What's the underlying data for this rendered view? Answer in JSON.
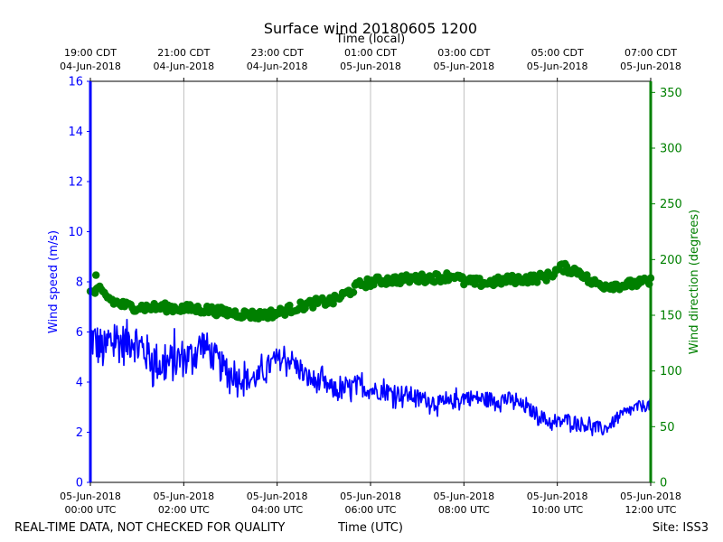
{
  "chart_data": {
    "type": "line",
    "title": "Surface wind 20180605 1200",
    "top_axis_label": "Time (local)",
    "xlabel": "Time (UTC)",
    "ylabel_left": "Wind speed (m/s)",
    "ylabel_right": "Wind direction (degrees)",
    "footer_left": "REAL-TIME DATA, NOT CHECKED FOR QUALITY",
    "footer_right": "Site: ISS3",
    "x_range_hours_utc": [
      0,
      12
    ],
    "ylim_left": [
      0,
      16
    ],
    "ylim_right": [
      0,
      360
    ],
    "left_ticks": [
      "0",
      "2",
      "4",
      "6",
      "8",
      "10",
      "12",
      "14",
      "16"
    ],
    "right_ticks": [
      "0",
      "50",
      "100",
      "150",
      "200",
      "250",
      "300",
      "350"
    ],
    "bottom_ticks": [
      {
        "hour": 0,
        "line1": "05-Jun-2018",
        "line2": "00:00 UTC"
      },
      {
        "hour": 2,
        "line1": "05-Jun-2018",
        "line2": "02:00 UTC"
      },
      {
        "hour": 4,
        "line1": "05-Jun-2018",
        "line2": "04:00 UTC"
      },
      {
        "hour": 6,
        "line1": "05-Jun-2018",
        "line2": "06:00 UTC"
      },
      {
        "hour": 8,
        "line1": "05-Jun-2018",
        "line2": "08:00 UTC"
      },
      {
        "hour": 10,
        "line1": "05-Jun-2018",
        "line2": "10:00 UTC"
      },
      {
        "hour": 12,
        "line1": "05-Jun-2018",
        "line2": "12:00 UTC"
      }
    ],
    "top_ticks": [
      {
        "hour": 0,
        "line1": "19:00 CDT",
        "line2": "04-Jun-2018"
      },
      {
        "hour": 2,
        "line1": "21:00 CDT",
        "line2": "04-Jun-2018"
      },
      {
        "hour": 4,
        "line1": "23:00 CDT",
        "line2": "04-Jun-2018"
      },
      {
        "hour": 6,
        "line1": "01:00 CDT",
        "line2": "05-Jun-2018"
      },
      {
        "hour": 8,
        "line1": "03:00 CDT",
        "line2": "05-Jun-2018"
      },
      {
        "hour": 10,
        "line1": "05:00 CDT",
        "line2": "05-Jun-2018"
      },
      {
        "hour": 12,
        "line1": "07:00 CDT",
        "line2": "05-Jun-2018"
      }
    ],
    "series": [
      {
        "name": "Wind speed",
        "axis": "left",
        "color": "#0000ff",
        "style": "line",
        "anchors": [
          [
            0,
            5.8
          ],
          [
            0.3,
            5.2
          ],
          [
            0.5,
            5.8
          ],
          [
            0.7,
            5.5
          ],
          [
            0.9,
            5.8
          ],
          [
            1.1,
            5.3
          ],
          [
            1.5,
            4.7
          ],
          [
            1.8,
            4.8
          ],
          [
            2.0,
            5.0
          ],
          [
            2.2,
            5.1
          ],
          [
            2.4,
            5.6
          ],
          [
            2.8,
            4.6
          ],
          [
            3.0,
            4.3
          ],
          [
            3.4,
            4.1
          ],
          [
            3.6,
            4.2
          ],
          [
            3.8,
            4.6
          ],
          [
            4.0,
            4.9
          ],
          [
            4.3,
            4.9
          ],
          [
            4.6,
            4.2
          ],
          [
            5.0,
            3.9
          ],
          [
            5.3,
            3.6
          ],
          [
            5.7,
            3.9
          ],
          [
            6.0,
            3.7
          ],
          [
            6.4,
            3.6
          ],
          [
            6.8,
            3.5
          ],
          [
            7.2,
            3.3
          ],
          [
            7.6,
            3.1
          ],
          [
            8.0,
            3.4
          ],
          [
            8.6,
            3.3
          ],
          [
            9.0,
            3.3
          ],
          [
            9.3,
            3.0
          ],
          [
            9.6,
            2.7
          ],
          [
            9.9,
            2.3
          ],
          [
            10.2,
            2.5
          ],
          [
            10.6,
            2.3
          ],
          [
            11.0,
            2.1
          ],
          [
            11.4,
            2.7
          ],
          [
            11.7,
            3.0
          ],
          [
            12.0,
            3.1
          ]
        ],
        "noise": [
          1.1,
          1.0,
          0.8,
          0.6,
          0.55,
          0.5,
          0.45,
          0.4,
          0.4,
          0.35,
          0.35,
          0.3,
          0.3
        ]
      },
      {
        "name": "Wind direction",
        "axis": "right",
        "color": "#008000",
        "style": "markers",
        "anchors": [
          [
            0,
            170
          ],
          [
            0.2,
            172
          ],
          [
            0.5,
            162
          ],
          [
            0.8,
            158
          ],
          [
            1.2,
            157
          ],
          [
            1.6,
            157
          ],
          [
            2.0,
            156
          ],
          [
            2.5,
            155
          ],
          [
            3.0,
            152
          ],
          [
            3.6,
            150
          ],
          [
            4.0,
            152
          ],
          [
            4.4,
            157
          ],
          [
            4.8,
            161
          ],
          [
            5.2,
            163
          ],
          [
            5.5,
            170
          ],
          [
            5.8,
            178
          ],
          [
            6.2,
            181
          ],
          [
            6.6,
            182
          ],
          [
            7.0,
            183
          ],
          [
            7.5,
            184
          ],
          [
            7.8,
            186
          ],
          [
            8.0,
            180
          ],
          [
            8.5,
            179
          ],
          [
            9.0,
            182
          ],
          [
            9.5,
            183
          ],
          [
            9.8,
            185
          ],
          [
            10.1,
            193
          ],
          [
            10.5,
            189
          ],
          [
            10.7,
            180
          ],
          [
            11.0,
            177
          ],
          [
            11.4,
            177
          ],
          [
            11.8,
            179
          ],
          [
            12.0,
            180
          ]
        ],
        "noise": 4,
        "outliers": [
          [
            0.12,
            186
          ]
        ]
      }
    ]
  }
}
